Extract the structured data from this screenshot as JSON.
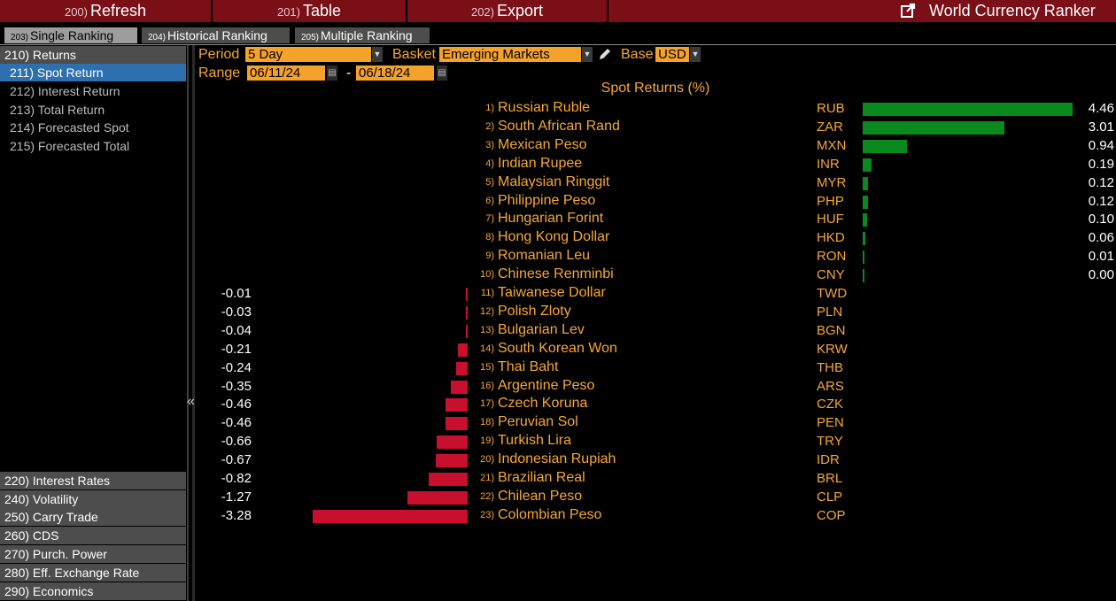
{
  "toolbar": {
    "refresh": {
      "num": "200)",
      "label": "Refresh"
    },
    "table": {
      "num": "201)",
      "label": "Table"
    },
    "export": {
      "num": "202)",
      "label": "Export"
    },
    "title": "World Currency Ranker",
    "title_icon": "external-link-icon"
  },
  "tabs": [
    {
      "num": "203)",
      "label": "Single Ranking",
      "active": true
    },
    {
      "num": "204)",
      "label": "Historical Ranking",
      "active": false
    },
    {
      "num": "205)",
      "label": "Multiple Ranking",
      "active": false
    }
  ],
  "sidebar": {
    "returns_header": "210) Returns",
    "items": [
      {
        "label": "211) Spot Return",
        "selected": true
      },
      {
        "label": "212) Interest Return",
        "selected": false
      },
      {
        "label": "213) Total Return",
        "selected": false
      },
      {
        "label": "214) Forecasted Spot",
        "selected": false
      },
      {
        "label": "215) Forecasted Total",
        "selected": false
      }
    ],
    "sections": [
      "220) Interest Rates",
      "240) Volatility",
      "250) Carry Trade",
      "260) CDS",
      "270) Purch. Power",
      "280) Eff. Exchange Rate",
      "290) Economics"
    ],
    "collapse_glyph": "«"
  },
  "controls": {
    "period_label": "Period",
    "period_value": "5 Day",
    "basket_label": "Basket",
    "basket_value": "Emerging Markets",
    "edit_icon": "pencil-icon",
    "base_label": "Base",
    "base_value": "USD",
    "range_label": "Range",
    "range_start": "06/11/24",
    "range_sep": "-",
    "range_end": "06/18/24"
  },
  "chart_data": {
    "type": "bar",
    "title": "Spot Returns (%)",
    "rows": [
      {
        "rank": "1)",
        "name": "Russian Ruble",
        "code": "RUB",
        "value": 4.46,
        "label": "4.46"
      },
      {
        "rank": "2)",
        "name": "South African Rand",
        "code": "ZAR",
        "value": 3.01,
        "label": "3.01"
      },
      {
        "rank": "3)",
        "name": "Mexican Peso",
        "code": "MXN",
        "value": 0.94,
        "label": "0.94"
      },
      {
        "rank": "4)",
        "name": "Indian Rupee",
        "code": "INR",
        "value": 0.19,
        "label": "0.19"
      },
      {
        "rank": "5)",
        "name": "Malaysian Ringgit",
        "code": "MYR",
        "value": 0.12,
        "label": "0.12"
      },
      {
        "rank": "6)",
        "name": "Philippine Peso",
        "code": "PHP",
        "value": 0.12,
        "label": "0.12"
      },
      {
        "rank": "7)",
        "name": "Hungarian Forint",
        "code": "HUF",
        "value": 0.1,
        "label": "0.10"
      },
      {
        "rank": "8)",
        "name": "Hong Kong Dollar",
        "code": "HKD",
        "value": 0.06,
        "label": "0.06"
      },
      {
        "rank": "9)",
        "name": "Romanian Leu",
        "code": "RON",
        "value": 0.01,
        "label": "0.01"
      },
      {
        "rank": "10)",
        "name": "Chinese Renminbi",
        "code": "CNY",
        "value": 0.0,
        "label": "0.00"
      },
      {
        "rank": "11)",
        "name": "Taiwanese Dollar",
        "code": "TWD",
        "value": -0.01,
        "label": "-0.01"
      },
      {
        "rank": "12)",
        "name": "Polish Zloty",
        "code": "PLN",
        "value": -0.03,
        "label": "-0.03"
      },
      {
        "rank": "13)",
        "name": "Bulgarian Lev",
        "code": "BGN",
        "value": -0.04,
        "label": "-0.04"
      },
      {
        "rank": "14)",
        "name": "South Korean Won",
        "code": "KRW",
        "value": -0.21,
        "label": "-0.21"
      },
      {
        "rank": "15)",
        "name": "Thai Baht",
        "code": "THB",
        "value": -0.24,
        "label": "-0.24"
      },
      {
        "rank": "16)",
        "name": "Argentine Peso",
        "code": "ARS",
        "value": -0.35,
        "label": "-0.35"
      },
      {
        "rank": "17)",
        "name": "Czech Koruna",
        "code": "CZK",
        "value": -0.46,
        "label": "-0.46"
      },
      {
        "rank": "18)",
        "name": "Peruvian Sol",
        "code": "PEN",
        "value": -0.46,
        "label": "-0.46"
      },
      {
        "rank": "19)",
        "name": "Turkish Lira",
        "code": "TRY",
        "value": -0.66,
        "label": "-0.66"
      },
      {
        "rank": "20)",
        "name": "Indonesian Rupiah",
        "code": "IDR",
        "value": -0.67,
        "label": "-0.67"
      },
      {
        "rank": "21)",
        "name": "Brazilian Real",
        "code": "BRL",
        "value": -0.82,
        "label": "-0.82"
      },
      {
        "rank": "22)",
        "name": "Chilean Peso",
        "code": "CLP",
        "value": -1.27,
        "label": "-1.27"
      },
      {
        "rank": "23)",
        "name": "Colombian Peso",
        "code": "COP",
        "value": -3.28,
        "label": "-3.28"
      }
    ],
    "positive_color": "#0a8a1e",
    "negative_color": "#c8102e"
  }
}
